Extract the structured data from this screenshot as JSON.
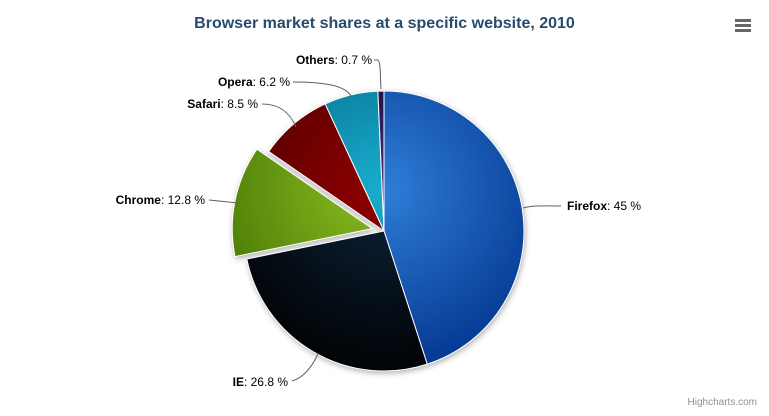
{
  "title": {
    "text": "Browser market shares at a specific website, 2010",
    "color": "#274b6d"
  },
  "credits": {
    "text": "Highcharts.com",
    "color": "#909090"
  },
  "context_menu": {
    "icon": "hamburger-icon",
    "bar_color": "#666666"
  },
  "chart_data": {
    "type": "pie",
    "title": "Browser market shares at a specific website, 2010",
    "legend": false,
    "background": "#ffffff",
    "slice_border_color": "#ffffff",
    "label_connector_color": "#606060",
    "label_text_color": "#000000",
    "label_format": "name: value %",
    "slices": [
      {
        "name": "Firefox",
        "value": 45,
        "value_text": "45 %",
        "label": "Firefox: 45 %",
        "color": "#2f7ed8",
        "sliced": false
      },
      {
        "name": "IE",
        "value": 26.8,
        "value_text": "26.8 %",
        "label": "IE: 26.8 %",
        "color": "#0d233a",
        "sliced": false
      },
      {
        "name": "Chrome",
        "value": 12.8,
        "value_text": "12.8 %",
        "label": "Chrome: 12.8 %",
        "color": "#8bbc21",
        "sliced": true
      },
      {
        "name": "Safari",
        "value": 8.5,
        "value_text": "8.5 %",
        "label": "Safari: 8.5 %",
        "color": "#910000",
        "sliced": false
      },
      {
        "name": "Opera",
        "value": 6.2,
        "value_text": "6.2 %",
        "label": "Opera: 6.2 %",
        "color": "#1aadce",
        "sliced": false
      },
      {
        "name": "Others",
        "value": 0.7,
        "value_text": "0.7 %",
        "label": "Others: 0.7 %",
        "color": "#492970",
        "sliced": false
      }
    ]
  }
}
